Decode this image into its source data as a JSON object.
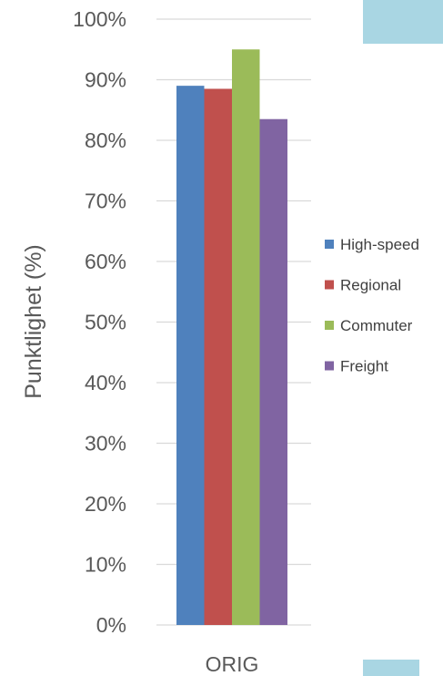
{
  "chart_data": {
    "type": "bar",
    "categories": [
      "ORIG"
    ],
    "series": [
      {
        "name": "High-speed",
        "values": [
          0.89
        ],
        "color": "#4f81bd"
      },
      {
        "name": "Regional",
        "values": [
          0.885
        ],
        "color": "#c0504d"
      },
      {
        "name": "Commuter",
        "values": [
          0.95
        ],
        "color": "#9bbb59"
      },
      {
        "name": "Freight",
        "values": [
          0.835
        ],
        "color": "#8064a2"
      }
    ],
    "ylabel": "Punktlighet (%)",
    "xlabel": "",
    "ylim": [
      0,
      1
    ],
    "yticks": [
      "0%",
      "10%",
      "20%",
      "30%",
      "40%",
      "50%",
      "60%",
      "70%",
      "80%",
      "90%",
      "100%"
    ],
    "grid": true,
    "legend_position": "right"
  },
  "colors": {
    "grid": "#d9d9d9",
    "decor": "#a9d6e3"
  }
}
